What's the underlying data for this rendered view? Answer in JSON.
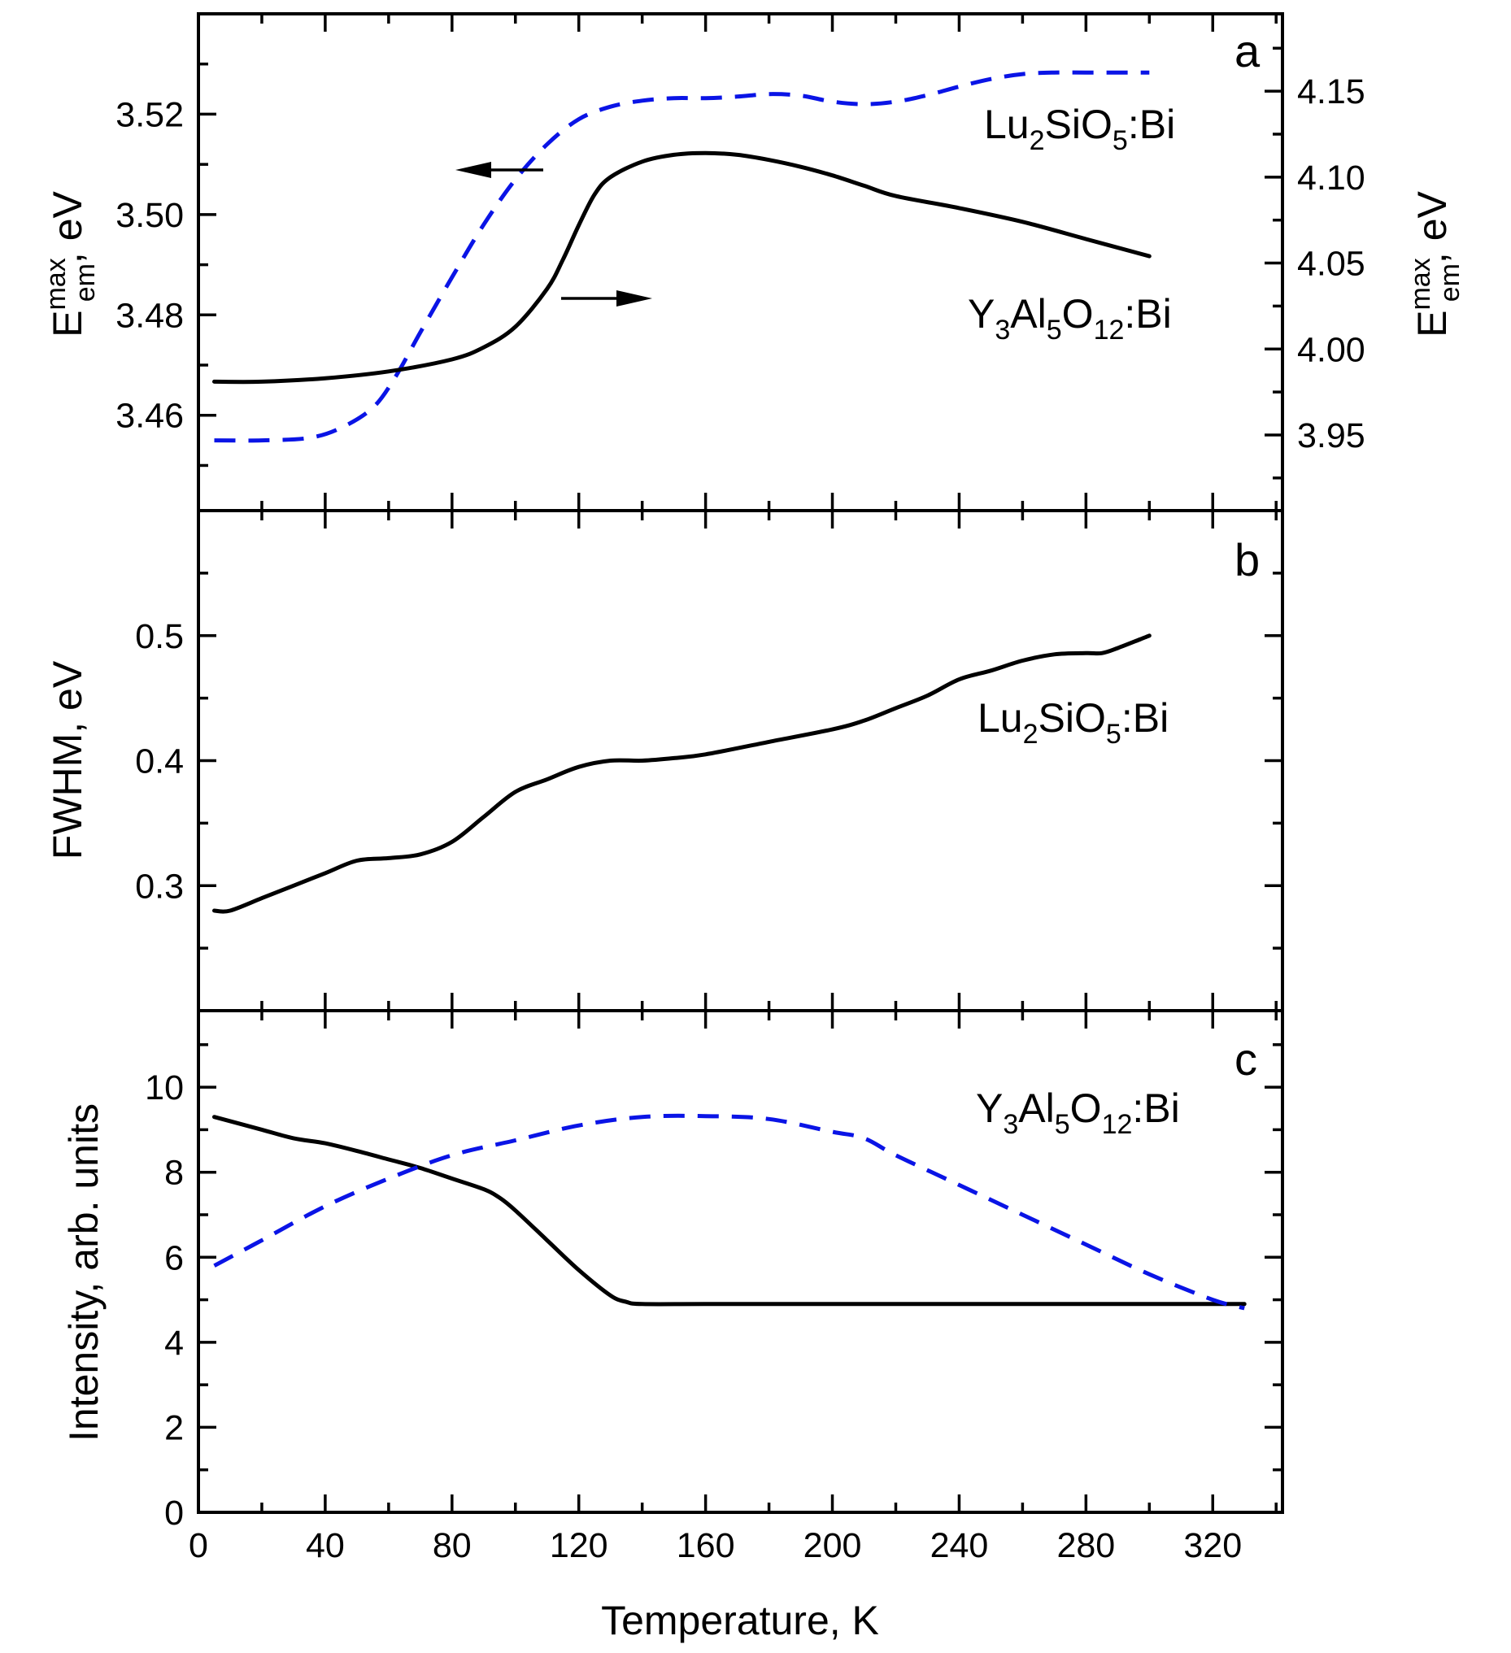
{
  "chart_data": [
    {
      "panel": "a",
      "type": "line",
      "xlabel": "Temperature, K",
      "xlim": [
        0,
        342
      ],
      "ylabel": "E_em^max, eV",
      "ylim": [
        3.441,
        3.54
      ],
      "y_ticks": [
        3.46,
        3.48,
        3.5,
        3.52
      ],
      "y_tick_labels": [
        "3.46",
        "3.48",
        "3.50",
        "3.52"
      ],
      "y2label": "E_em^max, eV",
      "y2lim": [
        3.906,
        4.195
      ],
      "y2_ticks": [
        3.95,
        4.0,
        4.05,
        4.1,
        4.15
      ],
      "y2_tick_labels": [
        "3.95",
        "4.00",
        "4.05",
        "4.10",
        "4.15"
      ],
      "series": [
        {
          "name": "Lu2SiO5:Bi",
          "axis": "left",
          "style": "dashed",
          "color": "#0a14e6",
          "x": [
            5,
            20,
            35,
            45,
            55,
            62,
            70,
            80,
            90,
            100,
            110,
            120,
            130,
            140,
            150,
            160,
            170,
            180,
            190,
            200,
            210,
            220,
            230,
            240,
            250,
            260,
            270,
            280,
            290,
            300
          ],
          "y": [
            3.455,
            3.455,
            3.4555,
            3.4575,
            3.4615,
            3.4675,
            3.4765,
            3.4875,
            3.498,
            3.507,
            3.514,
            3.519,
            3.5215,
            3.5227,
            3.5232,
            3.5232,
            3.5235,
            3.524,
            3.5237,
            3.5225,
            3.522,
            3.5225,
            3.5238,
            3.5255,
            3.527,
            3.528,
            3.5283,
            3.5283,
            3.5283,
            3.5283
          ]
        },
        {
          "name": "Y3Al5O12:Bi",
          "axis": "right",
          "style": "solid",
          "color": "#000000",
          "x": [
            5,
            20,
            40,
            60,
            80,
            90,
            100,
            110,
            115,
            120,
            125,
            130,
            140,
            150,
            160,
            170,
            180,
            190,
            200,
            210,
            220,
            240,
            260,
            280,
            300
          ],
          "y": [
            3.981,
            3.981,
            3.983,
            3.987,
            3.994,
            4.001,
            4.013,
            4.035,
            4.052,
            4.072,
            4.09,
            4.1,
            4.109,
            4.113,
            4.114,
            4.113,
            4.11,
            4.106,
            4.101,
            4.095,
            4.089,
            4.082,
            4.074,
            4.064,
            4.054
          ]
        }
      ],
      "annotations": [
        {
          "name": "lu-label",
          "base": "Lu",
          "sub1": "2",
          "mid": "SiO",
          "sub2": "5",
          "tail": ":Bi"
        },
        {
          "name": "yag-label",
          "base": "Y",
          "sub1": "3",
          "mid1": "Al",
          "sub2": "5",
          "mid2": "O",
          "sub3": "12",
          "tail": ":Bi"
        }
      ],
      "arrows": [
        {
          "series": "Lu2SiO5:Bi",
          "direction": "left"
        },
        {
          "series": "Y3Al5O12:Bi",
          "direction": "right"
        }
      ]
    },
    {
      "panel": "b",
      "type": "line",
      "xlim": [
        0,
        342
      ],
      "ylabel": "FWHM, eV",
      "ylim": [
        0.2,
        0.6
      ],
      "y_ticks": [
        0.3,
        0.4,
        0.5
      ],
      "y_tick_labels": [
        "0.3",
        "0.4",
        "0.5"
      ],
      "series": [
        {
          "name": "Lu2SiO5:Bi",
          "style": "solid",
          "color": "#000000",
          "x": [
            5,
            10,
            20,
            30,
            40,
            50,
            60,
            70,
            80,
            90,
            100,
            110,
            120,
            130,
            140,
            150,
            160,
            180,
            200,
            210,
            220,
            230,
            240,
            250,
            260,
            270,
            280,
            285,
            290,
            300
          ],
          "y": [
            0.28,
            0.28,
            0.29,
            0.3,
            0.31,
            0.32,
            0.322,
            0.325,
            0.335,
            0.355,
            0.375,
            0.385,
            0.395,
            0.4,
            0.4,
            0.402,
            0.405,
            0.415,
            0.425,
            0.432,
            0.442,
            0.452,
            0.465,
            0.472,
            0.48,
            0.485,
            0.486,
            0.486,
            0.49,
            0.5
          ]
        }
      ],
      "annotations": [
        {
          "name": "lu-label",
          "base": "Lu",
          "sub1": "2",
          "mid": "SiO",
          "sub2": "5",
          "tail": ":Bi"
        }
      ]
    },
    {
      "panel": "c",
      "type": "line",
      "xlabel": "Temperature, K",
      "xlim": [
        0,
        342
      ],
      "x_ticks": [
        0,
        40,
        80,
        120,
        160,
        200,
        240,
        280,
        320
      ],
      "x_tick_labels": [
        "0",
        "40",
        "80",
        "120",
        "160",
        "200",
        "240",
        "280",
        "320"
      ],
      "ylabel": "Intensity, arb. units",
      "ylim": [
        0,
        11.8
      ],
      "y_ticks": [
        0,
        2,
        4,
        6,
        8,
        10
      ],
      "y_tick_labels": [
        "0",
        "2",
        "4",
        "6",
        "8",
        "10"
      ],
      "series": [
        {
          "name": "Y3Al5O12:Bi solid",
          "style": "solid",
          "color": "#000000",
          "x": [
            5,
            20,
            30,
            40,
            50,
            60,
            70,
            80,
            90,
            95,
            100,
            110,
            120,
            130,
            135,
            140,
            160,
            200,
            240,
            280,
            330
          ],
          "y": [
            9.3,
            9.0,
            8.8,
            8.68,
            8.5,
            8.3,
            8.1,
            7.85,
            7.6,
            7.4,
            7.1,
            6.4,
            5.7,
            5.1,
            4.95,
            4.9,
            4.9,
            4.9,
            4.9,
            4.9,
            4.9
          ]
        },
        {
          "name": "Y3Al5O12:Bi dashed",
          "style": "dashed",
          "color": "#0a14e6",
          "x": [
            5,
            20,
            40,
            60,
            80,
            100,
            120,
            140,
            160,
            180,
            200,
            210,
            220,
            240,
            260,
            280,
            300,
            320,
            330
          ],
          "y": [
            5.8,
            6.4,
            7.2,
            7.85,
            8.4,
            8.75,
            9.1,
            9.3,
            9.32,
            9.25,
            8.95,
            8.8,
            8.4,
            7.7,
            7.0,
            6.3,
            5.6,
            5.0,
            4.8
          ]
        }
      ],
      "annotations": [
        {
          "name": "yag-label",
          "base": "Y",
          "sub1": "3",
          "mid1": "Al",
          "sub2": "5",
          "mid2": "O",
          "sub3": "12",
          "tail": ":Bi"
        }
      ]
    }
  ],
  "panel_letters": [
    "a",
    "b",
    "c"
  ],
  "axis_titles": {
    "left_a_base": "E",
    "left_a_sup": "max",
    "left_a_sub": "em",
    "left_a_tail": ", eV",
    "right_a_base": "E",
    "right_a_sup": "max",
    "right_a_sub": "em",
    "right_a_tail": ", eV",
    "left_b": "FWHM, eV",
    "left_c": "Intensity, arb. units",
    "bottom": "Temperature, K"
  }
}
